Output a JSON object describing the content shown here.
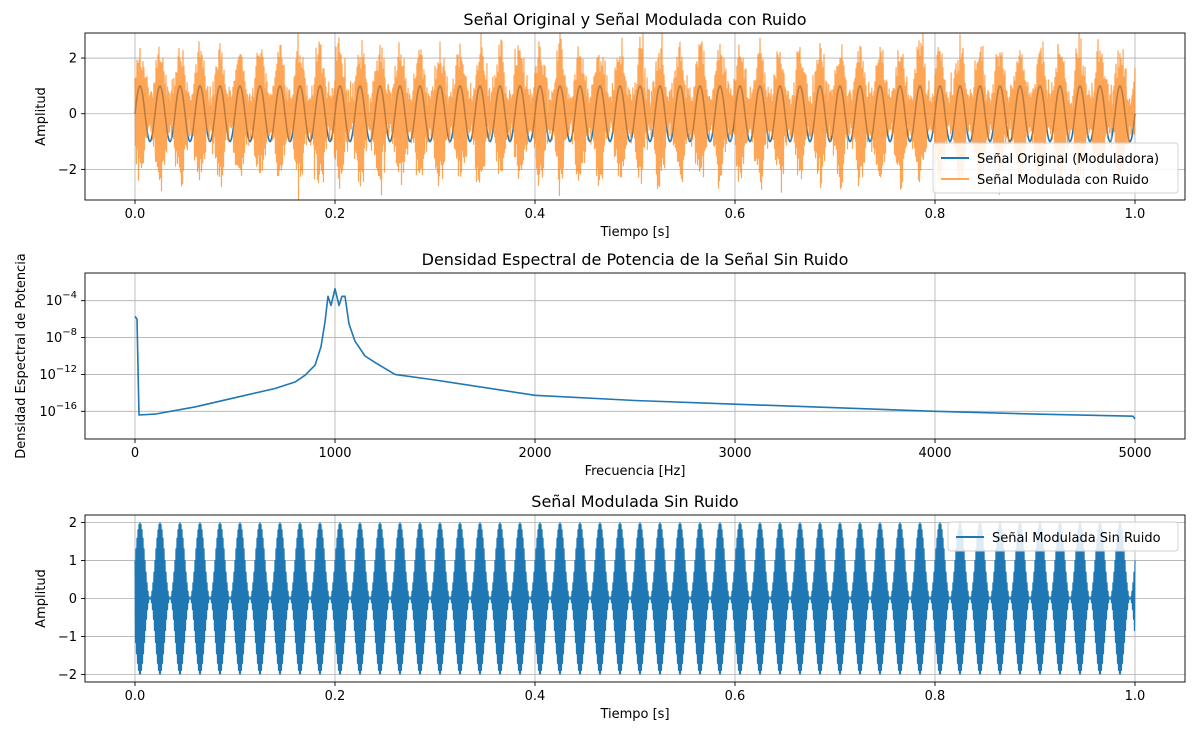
{
  "colors": {
    "series_blue": "#1f77b4",
    "series_orange": "#ff7f0e",
    "grid": "#b0b0b0",
    "axes": "#000000"
  },
  "chart_data": [
    {
      "type": "line",
      "title": "Señal Original y Señal Modulada con Ruido",
      "xlabel": "Tiempo [s]",
      "ylabel": "Amplitud",
      "xlim": [
        -0.05,
        1.05
      ],
      "ylim": [
        -3.1,
        2.9
      ],
      "xticks": [
        0.0,
        0.2,
        0.4,
        0.6,
        0.8,
        1.0
      ],
      "xtick_labels": [
        "0.0",
        "0.2",
        "0.4",
        "0.6",
        "0.8",
        "1.0"
      ],
      "yticks": [
        -2,
        0,
        2
      ],
      "ytick_labels": [
        "−2",
        "0",
        "2"
      ],
      "grid": true,
      "legend_position": "lower-right",
      "series": [
        {
          "name": "Señal Original (Moduladora)",
          "color": "#1f77b4",
          "model": "sine",
          "frequency_hz": 50,
          "amplitude": 1,
          "t_range": [
            0,
            1
          ]
        },
        {
          "name": "Señal Modulada con Ruido",
          "color": "#ff7f0e",
          "opacity": 0.7,
          "model": "am_noisy",
          "carrier_hz": 1000,
          "mod_hz": 50,
          "mod_index": 1,
          "noise_std": 0.4,
          "t_range": [
            0,
            1
          ]
        }
      ]
    },
    {
      "type": "line",
      "title": "Densidad Espectral de Potencia de la Señal Sin Ruido",
      "xlabel": "Frecuencia [Hz]",
      "ylabel": "Densidad Espectral de Potencia",
      "xlim": [
        -250,
        5250
      ],
      "y_scale": "log",
      "ylim": [
        1e-19,
        0.1
      ],
      "xticks": [
        0,
        1000,
        2000,
        3000,
        4000,
        5000
      ],
      "xtick_labels": [
        "0",
        "1000",
        "2000",
        "3000",
        "4000",
        "5000"
      ],
      "yticks": [
        1e-16,
        1e-12,
        1e-08,
        0.0001
      ],
      "ytick_labels": [
        {
          "base": "10",
          "exp": "−16"
        },
        {
          "base": "10",
          "exp": "−12"
        },
        {
          "base": "10",
          "exp": "−8"
        },
        {
          "base": "10",
          "exp": "−4"
        }
      ],
      "grid": true,
      "series": [
        {
          "color": "#1f77b4",
          "x": [
            0,
            10,
            20,
            100,
            300,
            500,
            700,
            800,
            850,
            900,
            930,
            950,
            965,
            980,
            1000,
            1020,
            1035,
            1050,
            1070,
            1100,
            1150,
            1200,
            1300,
            1500,
            2000,
            2500,
            3000,
            3500,
            4000,
            4500,
            4990,
            5000
          ],
          "y": [
            2e-06,
            1e-06,
            4e-17,
            5e-17,
            3e-16,
            3e-15,
            3e-14,
            1.5e-13,
            8e-13,
            1e-11,
            1e-09,
            5e-07,
            0.0003,
            3e-05,
            0.002,
            3e-05,
            0.0003,
            0.0003,
            3e-07,
            4e-09,
            1e-10,
            2e-11,
            1e-12,
            2.5e-13,
            5.5e-15,
            1.5e-15,
            6e-16,
            2.5e-16,
            1e-16,
            5e-17,
            3e-17,
            1.5e-17
          ]
        }
      ]
    },
    {
      "type": "line",
      "title": "Señal Modulada Sin Ruido",
      "xlabel": "Tiempo [s]",
      "ylabel": "Amplitud",
      "xlim": [
        -0.05,
        1.05
      ],
      "ylim": [
        -2.2,
        2.2
      ],
      "xticks": [
        0.0,
        0.2,
        0.4,
        0.6,
        0.8,
        1.0
      ],
      "xtick_labels": [
        "0.0",
        "0.2",
        "0.4",
        "0.6",
        "0.8",
        "1.0"
      ],
      "yticks": [
        -2,
        -1,
        0,
        1,
        2
      ],
      "ytick_labels": [
        "−2",
        "−1",
        "0",
        "1",
        "2"
      ],
      "grid": true,
      "legend_position": "upper-right",
      "series": [
        {
          "name": "Señal Modulada Sin Ruido",
          "color": "#1f77b4",
          "model": "am",
          "carrier_hz": 1000,
          "mod_hz": 50,
          "mod_index": 1,
          "t_range": [
            0,
            1
          ]
        }
      ]
    }
  ]
}
